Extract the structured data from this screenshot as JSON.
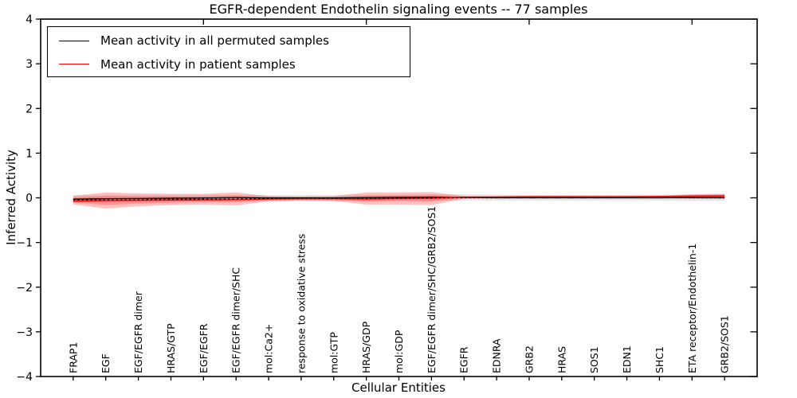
{
  "figure": {
    "title": "EGFR-dependent Endothelin signaling events -- 77 samples"
  },
  "chart_data": {
    "type": "line",
    "title": "EGFR-dependent Endothelin signaling events -- 77 samples",
    "xlabel": "Cellular Entities",
    "ylabel": "Inferred Activity",
    "ylim": [
      -4,
      4
    ],
    "yticks": [
      -4,
      -3,
      -2,
      -1,
      0,
      1,
      2,
      3,
      4
    ],
    "x_axis_range": [
      0,
      22
    ],
    "top_axis_ticks": [
      5,
      10,
      15,
      20
    ],
    "grid": false,
    "legend_position": "upper left",
    "categories": [
      "FRAP1",
      "EGF",
      "EGF/EGFR dimer",
      "HRAS/GTP",
      "EGF/EGFR",
      "EGF/EGFR dimer/SHC",
      "mol:Ca2+",
      "response to oxidative stress",
      "mol:GTP",
      "HRAS/GDP",
      "mol:GDP",
      "EGF/EGFR dimer/SHC/GRB2/SOS1",
      "EGFR",
      "EDNRA",
      "GRB2",
      "HRAS",
      "SOS1",
      "EDN1",
      "SHC1",
      "ETA receptor/Endothelin-1",
      "GRB2/SOS1"
    ],
    "series": [
      {
        "name": "Mean activity in all permuted samples",
        "color": "#000000",
        "width": 1.3,
        "values": [
          -0.03,
          -0.02,
          -0.015,
          -0.01,
          -0.005,
          0.005,
          0.0,
          0.0,
          0.0,
          0.005,
          0.01,
          0.015,
          0.005,
          0.0,
          0.0,
          0.0,
          0.0,
          0.0,
          0.0,
          0.005,
          0.005
        ]
      },
      {
        "name": "Mean activity in patient samples",
        "color": "#ff0000",
        "width": 1.6,
        "values": [
          -0.07,
          -0.06,
          -0.055,
          -0.05,
          -0.045,
          -0.04,
          -0.025,
          -0.02,
          -0.02,
          -0.025,
          -0.015,
          -0.01,
          0.015,
          0.02,
          0.025,
          0.025,
          0.025,
          0.025,
          0.03,
          0.035,
          0.04
        ]
      }
    ],
    "baseline": {
      "name": "zero-reference-dotted",
      "color": "#000000",
      "width": 1.3,
      "dash": "2 3.4",
      "values": [
        -0.045,
        -0.04,
        -0.04,
        -0.035,
        -0.03,
        -0.025,
        -0.015,
        -0.01,
        -0.01,
        -0.01,
        -0.005,
        0.0,
        0.0,
        0.0,
        0.0,
        0.0,
        0.0,
        0.0,
        0.0,
        0.0,
        0.0
      ]
    },
    "bands": [
      {
        "name": "permuted-samples-range-band",
        "color": "rgba(130,130,130,0.20)",
        "upper": [
          0.05,
          0.06,
          0.06,
          0.06,
          0.06,
          0.07,
          0.06,
          0.06,
          0.06,
          0.07,
          0.07,
          0.08,
          0.08,
          0.07,
          0.07,
          0.07,
          0.07,
          0.07,
          0.07,
          0.08,
          0.08
        ],
        "lower": [
          -0.1,
          -0.09,
          -0.09,
          -0.08,
          -0.08,
          -0.08,
          -0.07,
          -0.08,
          -0.08,
          -0.07,
          -0.07,
          -0.07,
          -0.06,
          -0.06,
          -0.06,
          -0.06,
          -0.06,
          -0.06,
          -0.06,
          -0.07,
          -0.07
        ]
      },
      {
        "name": "patient-samples-range-band-outer",
        "color": "rgba(255,45,45,0.30)",
        "upper": [
          0.05,
          0.12,
          0.1,
          0.09,
          0.09,
          0.12,
          0.04,
          0.03,
          0.04,
          0.12,
          0.12,
          0.13,
          0.04,
          0.03,
          0.03,
          0.03,
          0.03,
          0.03,
          0.04,
          0.08,
          0.09
        ],
        "lower": [
          -0.15,
          -0.24,
          -0.19,
          -0.16,
          -0.15,
          -0.17,
          -0.08,
          -0.06,
          -0.07,
          -0.15,
          -0.15,
          -0.16,
          -0.02,
          -0.01,
          -0.01,
          -0.01,
          -0.01,
          -0.01,
          -0.01,
          -0.02,
          -0.03
        ]
      },
      {
        "name": "patient-samples-range-band-inner",
        "color": "rgba(255,45,45,0.30)",
        "upper": [
          0.0,
          0.04,
          0.03,
          0.03,
          0.03,
          0.05,
          0.01,
          0.01,
          0.01,
          0.05,
          0.05,
          0.06,
          0.03,
          0.03,
          0.03,
          0.03,
          0.03,
          0.03,
          0.03,
          0.06,
          0.07
        ],
        "lower": [
          -0.11,
          -0.16,
          -0.13,
          -0.11,
          -0.1,
          -0.1,
          -0.05,
          -0.04,
          -0.04,
          -0.08,
          -0.07,
          -0.08,
          0.0,
          0.01,
          0.01,
          0.01,
          0.01,
          0.01,
          0.01,
          0.0,
          0.0
        ]
      }
    ]
  }
}
